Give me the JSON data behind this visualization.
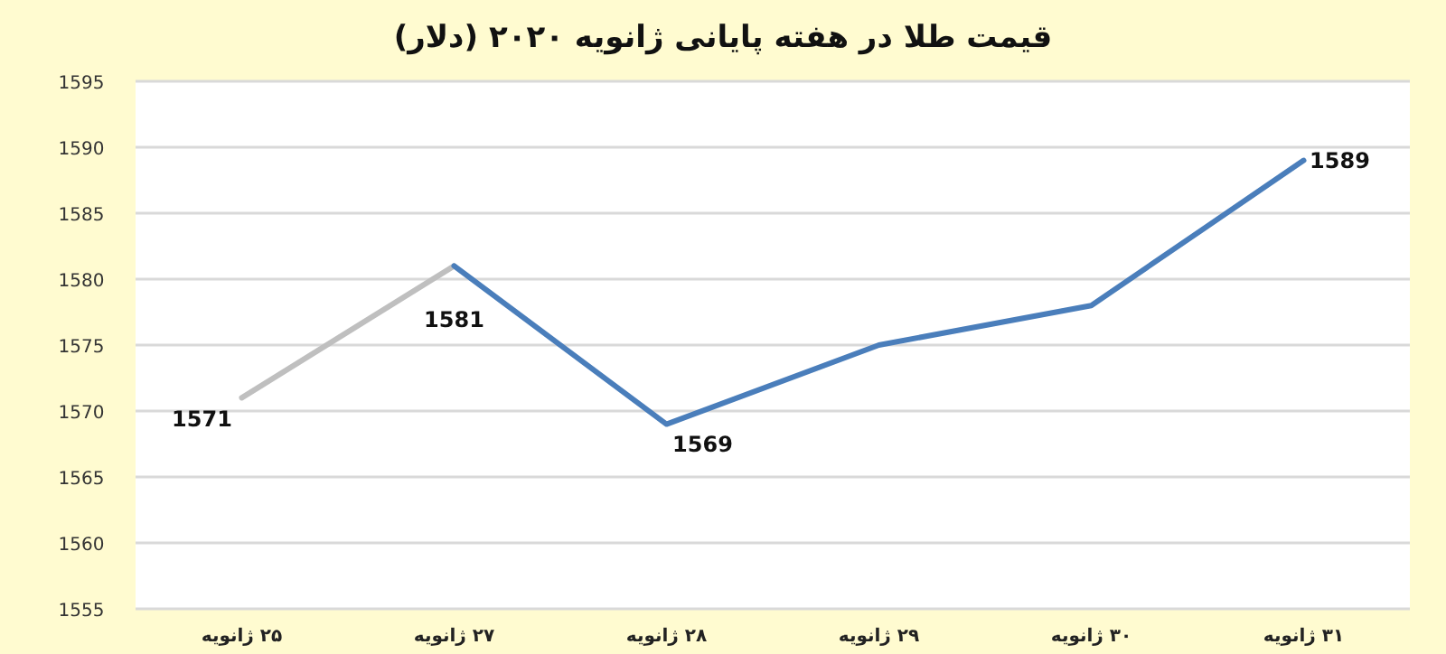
{
  "chart_data": {
    "type": "line",
    "title": "قیمت طلا در هفته پایانی ژانویه ۲۰۲۰ (دلار)",
    "categories": [
      "۲۵ ژانویه",
      "۲۷ ژانویه",
      "۲۸ ژانویه",
      "۲۹ ژانویه",
      "۳۰ ژانویه",
      "۳۱ ژانویه"
    ],
    "series": [
      {
        "color": "#bfbfbf",
        "values": [
          1571,
          1581,
          null,
          null,
          null,
          null
        ],
        "value_labels": [
          "1571",
          "1581",
          null,
          null,
          null,
          null
        ]
      },
      {
        "color": "#4a7ebb",
        "values": [
          null,
          1581,
          1569,
          1575,
          1578,
          1589
        ],
        "value_labels": [
          null,
          null,
          "1569",
          null,
          null,
          "1589"
        ]
      }
    ],
    "ylim": [
      1555,
      1595
    ],
    "yticks": [
      1555,
      1560,
      1565,
      1570,
      1575,
      1580,
      1585,
      1590,
      1595
    ],
    "grid": "y",
    "marker": "none",
    "line_style": "solid"
  }
}
